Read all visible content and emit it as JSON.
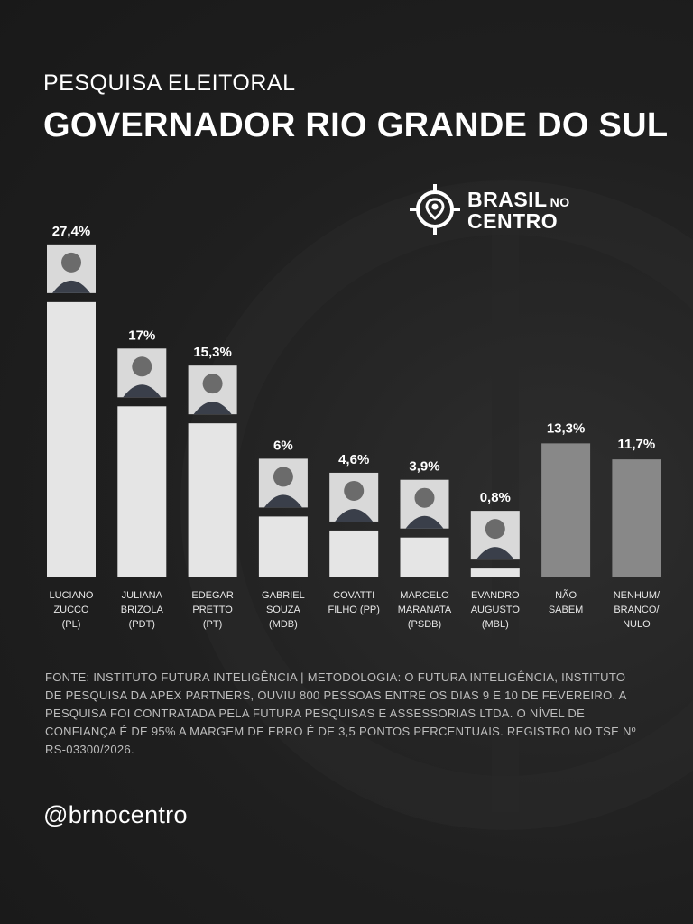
{
  "header": {
    "kicker": "PESQUISA ELEITORAL",
    "title": "GOVERNADOR RIO GRANDE DO SUL"
  },
  "logo": {
    "word1": "BRASIL",
    "word_small": "NO",
    "word2": "CENTRO",
    "icon": "crosshair-pin-icon"
  },
  "colors": {
    "background": "#1f1f1f",
    "bar_candidate": "#e5e5e5",
    "bar_other": "#888888",
    "text": "#ffffff",
    "source_text": "#bdbdbd"
  },
  "chart_data": {
    "type": "bar",
    "title": "GOVERNADOR RIO GRANDE DO SUL",
    "categories": [
      [
        "LUCIANO",
        "ZUCCO",
        "(PL)"
      ],
      [
        "JULIANA",
        "BRIZOLA",
        "(PDT)"
      ],
      [
        "EDEGAR",
        "PRETTO",
        "(PT)"
      ],
      [
        "GABRIEL",
        "SOUZA",
        "(MDB)"
      ],
      [
        "COVATTI",
        "FILHO (PP)"
      ],
      [
        "MARCELO",
        "MARANATA",
        "(PSDB)"
      ],
      [
        "EVANDRO",
        "AUGUSTO",
        "(MBL)"
      ],
      [
        "NÃO",
        "SABEM"
      ],
      [
        "NENHUM/",
        "BRANCO/",
        "NULO"
      ]
    ],
    "values": [
      27.4,
      17,
      15.3,
      6,
      4.6,
      3.9,
      0.8,
      13.3,
      11.7
    ],
    "value_labels": [
      "27,4%",
      "17%",
      "15,3%",
      "6%",
      "4,6%",
      "3,9%",
      "0,8%",
      "13,3%",
      "11,7%"
    ],
    "has_photo": [
      true,
      true,
      true,
      true,
      true,
      true,
      true,
      false,
      false
    ],
    "unit": "%"
  },
  "footer": {
    "source": "FONTE: INSTITUTO FUTURA INTELIGÊNCIA | METODOLOGIA: O FUTURA INTELIGÊNCIA, INSTITUTO DE PESQUISA DA APEX PARTNERS, OUVIU 800 PESSOAS ENTRE OS DIAS 9 E 10 DE FEVEREIRO. A PESQUISA FOI CONTRATADA PELA FUTURA PESQUISAS E ASSESSORIAS LTDA. O NÍVEL DE CONFIANÇA É DE 95% A MARGEM DE ERRO É DE 3,5 PONTOS PERCENTUAIS. REGISTRO NO TSE Nº RS-03300/2026.",
    "handle": "@brnocentro"
  }
}
